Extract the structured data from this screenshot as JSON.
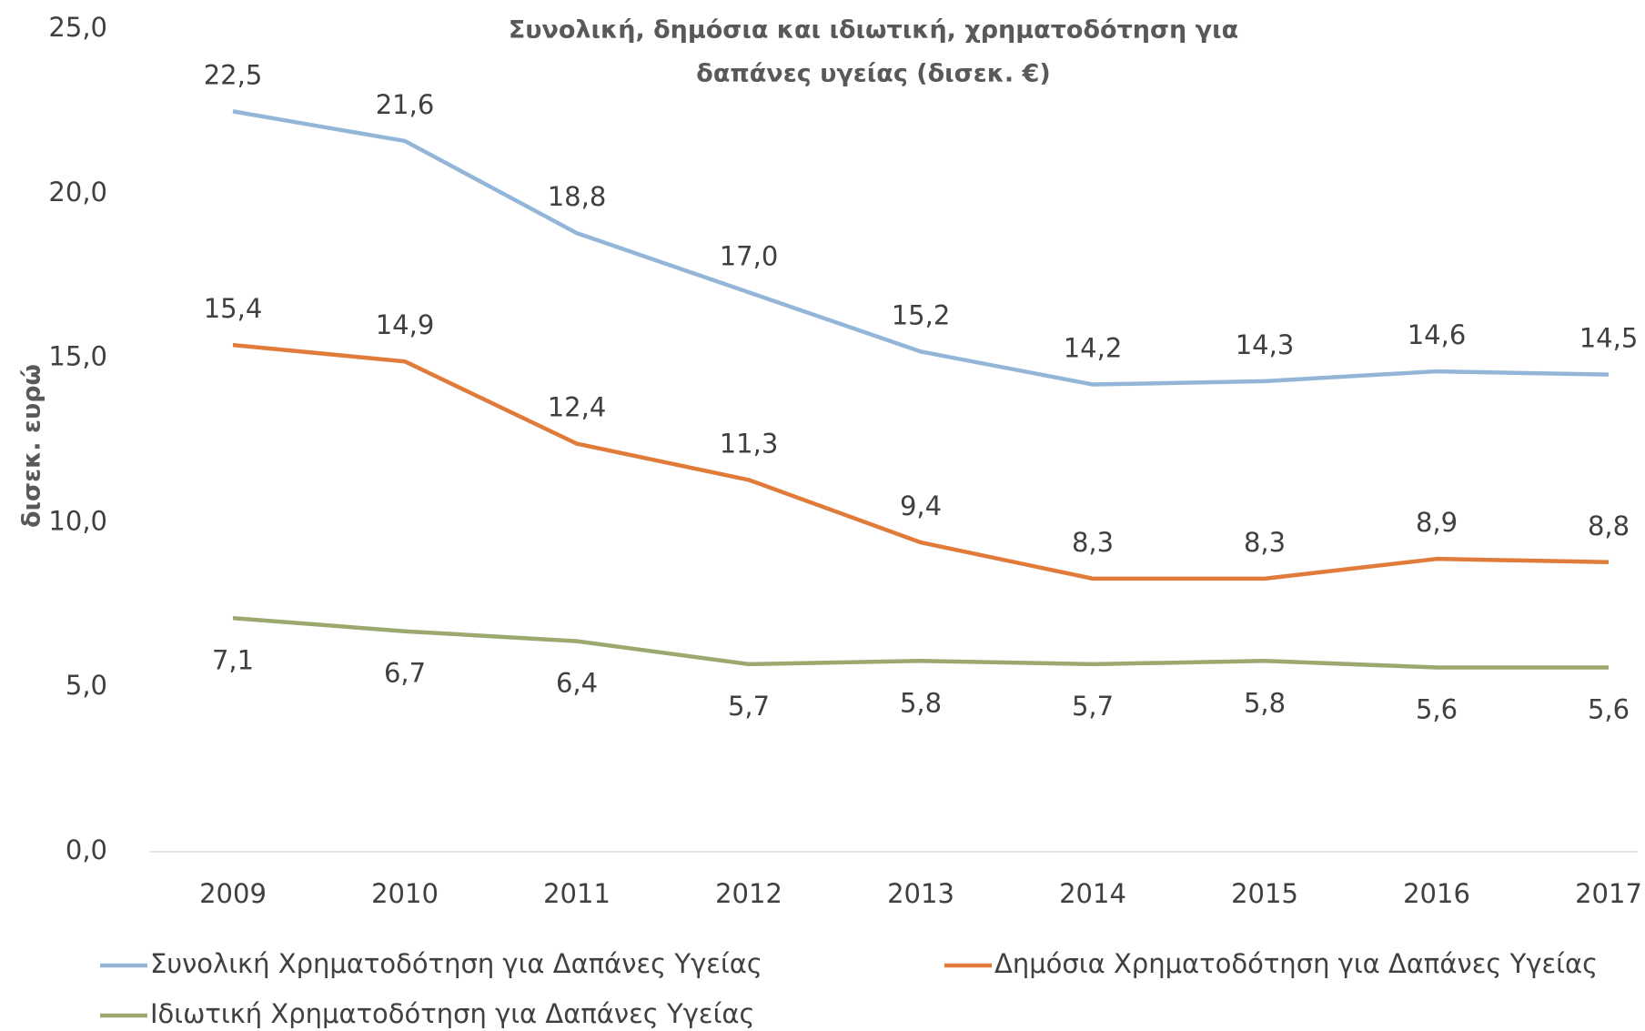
{
  "chart_data": {
    "type": "line",
    "title": [
      "Συνολική, δημόσια και ιδιωτική, χρηματοδότηση για",
      "δαπάνες υγείας (δισεκ. €)"
    ],
    "y_label": "δισεκ. ευρώ",
    "categories": [
      "2009",
      "2010",
      "2011",
      "2012",
      "2013",
      "2014",
      "2015",
      "2016",
      "2017"
    ],
    "series": [
      {
        "name": "Συνολική Χρηματοδότηση για Δαπάνες Υγείας",
        "color": "#93b6d8",
        "values": [
          22.5,
          21.6,
          18.8,
          17.0,
          15.2,
          14.2,
          14.3,
          14.6,
          14.5
        ],
        "value_labels": [
          "22,5",
          "21,6",
          "18,8",
          "17,0",
          "15,2",
          "14,2",
          "14,3",
          "14,6",
          "14,5"
        ]
      },
      {
        "name": "Δημόσια Χρηματοδότηση για Δαπάνες Υγείας",
        "color": "#e07b39",
        "values": [
          15.4,
          14.9,
          12.4,
          11.3,
          9.4,
          8.3,
          8.3,
          8.9,
          8.8
        ],
        "value_labels": [
          "15,4",
          "14,9",
          "12,4",
          "11,3",
          "9,4",
          "8,3",
          "8,3",
          "8,9",
          "8,8"
        ]
      },
      {
        "name": "Ιδιωτική Χρηματοδότηση για Δαπάνες Υγείας",
        "color": "#9ba86e",
        "values": [
          7.1,
          6.7,
          6.4,
          5.7,
          5.8,
          5.7,
          5.8,
          5.6,
          5.6
        ],
        "value_labels": [
          "7,1",
          "6,7",
          "6,4",
          "5,7",
          "5,8",
          "5,7",
          "5,8",
          "5,6",
          "5,6"
        ]
      }
    ],
    "ylim": [
      0,
      25
    ],
    "yticks": [
      {
        "value": 0,
        "label": "0,0"
      },
      {
        "value": 5,
        "label": "5,0"
      },
      {
        "value": 10,
        "label": "10,0"
      },
      {
        "value": 15,
        "label": "15,0"
      },
      {
        "value": 20,
        "label": "20,0"
      },
      {
        "value": 25,
        "label": "25,0"
      }
    ],
    "grid": false,
    "legend": "bottom"
  }
}
